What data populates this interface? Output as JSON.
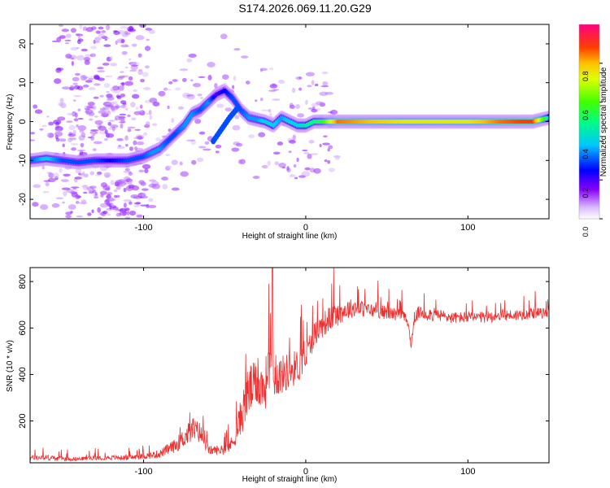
{
  "title": "S174.2026.069.11.20.G29",
  "chart_data": [
    {
      "type": "heatmap",
      "xlabel": "Height of straight line (km)",
      "ylabel": "Frequency (Hz)",
      "xlim": [
        -170,
        150
      ],
      "ylim": [
        -25,
        25
      ],
      "xticks": [
        -100,
        0,
        100
      ],
      "xtick_labels": [
        "-100",
        "0",
        "100"
      ],
      "yticks": [
        -20,
        -10,
        0,
        10,
        20
      ],
      "ytick_labels": [
        "-20",
        "-10",
        "0",
        "10",
        "20"
      ],
      "colorbar": {
        "label": "Normalized spectral amplitude",
        "range": [
          0,
          1
        ],
        "ticks": [
          0.0,
          0.2,
          0.4,
          0.6,
          0.8
        ],
        "tick_labels": [
          "0.0",
          "0.2",
          "0.4",
          "0.6",
          "0.8"
        ]
      },
      "ridge": {
        "x": [
          -170,
          -160,
          -150,
          -140,
          -130,
          -120,
          -110,
          -100,
          -95,
          -90,
          -85,
          -80,
          -75,
          -70,
          -65,
          -60,
          -55,
          -50,
          -45,
          -40,
          -35,
          -30,
          -25,
          -20,
          -15,
          -10,
          -5,
          0,
          5,
          10,
          20,
          40,
          60,
          80,
          100,
          120,
          140,
          150
        ],
        "y": [
          -10,
          -9.5,
          -10,
          -10.5,
          -10,
          -10,
          -10,
          -9,
          -8,
          -7,
          -5,
          -3,
          -1,
          2,
          3,
          5,
          7,
          8,
          6,
          3,
          1,
          0.5,
          0,
          -1,
          1,
          0,
          -1,
          -1,
          0,
          0,
          0,
          0,
          0,
          0,
          0,
          0,
          0,
          1
        ],
        "amplitude": [
          0.3,
          0.4,
          0.3,
          0.3,
          0.3,
          0.25,
          0.3,
          0.3,
          0.35,
          0.35,
          0.3,
          0.3,
          0.35,
          0.35,
          0.3,
          0.35,
          0.2,
          0.25,
          0.3,
          0.3,
          0.35,
          0.35,
          0.4,
          0.4,
          0.35,
          0.4,
          0.4,
          0.45,
          0.5,
          0.55,
          0.85,
          0.8,
          0.75,
          0.75,
          0.75,
          0.85,
          0.9,
          0.45
        ]
      },
      "secondary_ridge": {
        "x": [
          -57,
          -52,
          -47,
          -43
        ],
        "y": [
          -5,
          -2,
          1,
          3
        ]
      },
      "noise_band_x": [
        -150,
        -100
      ]
    },
    {
      "type": "line",
      "xlabel": "Height of straight line (km)",
      "ylabel": "SNR (10 * v/v)",
      "xlim": [
        -170,
        150
      ],
      "ylim": [
        20,
        860
      ],
      "xticks": [
        -100,
        0,
        100
      ],
      "xtick_labels": [
        "-100",
        "0",
        "100"
      ],
      "yticks": [
        200,
        400,
        600,
        800
      ],
      "ytick_labels": [
        "200",
        "400",
        "600",
        "800"
      ],
      "color": "#f03030",
      "series": [
        {
          "name": "SNR",
          "x": [
            -170,
            -160,
            -150,
            -140,
            -130,
            -120,
            -110,
            -100,
            -90,
            -80,
            -70,
            -65,
            -60,
            -50,
            -45,
            -40,
            -35,
            -30,
            -25,
            -22,
            -20,
            -15,
            -10,
            -5,
            0,
            5,
            10,
            15,
            20,
            25,
            30,
            40,
            50,
            60,
            63,
            65,
            67,
            70,
            80,
            90,
            100,
            110,
            120,
            130,
            140,
            150
          ],
          "y": [
            40,
            40,
            35,
            35,
            40,
            40,
            40,
            45,
            55,
            90,
            150,
            140,
            70,
            70,
            100,
            200,
            310,
            340,
            320,
            500,
            370,
            380,
            400,
            420,
            460,
            560,
            600,
            630,
            650,
            670,
            680,
            670,
            660,
            650,
            620,
            520,
            640,
            660,
            650,
            640,
            640,
            640,
            650,
            650,
            660,
            660
          ],
          "spike_amplitude": [
            20,
            25,
            20,
            15,
            20,
            20,
            20,
            25,
            35,
            60,
            110,
            90,
            40,
            40,
            70,
            160,
            240,
            180,
            200,
            350,
            170,
            170,
            160,
            150,
            130,
            110,
            110,
            110,
            100,
            90,
            80,
            60,
            60,
            50,
            40,
            30,
            50,
            60,
            60,
            50,
            50,
            50,
            50,
            50,
            50,
            40
          ]
        }
      ]
    }
  ]
}
